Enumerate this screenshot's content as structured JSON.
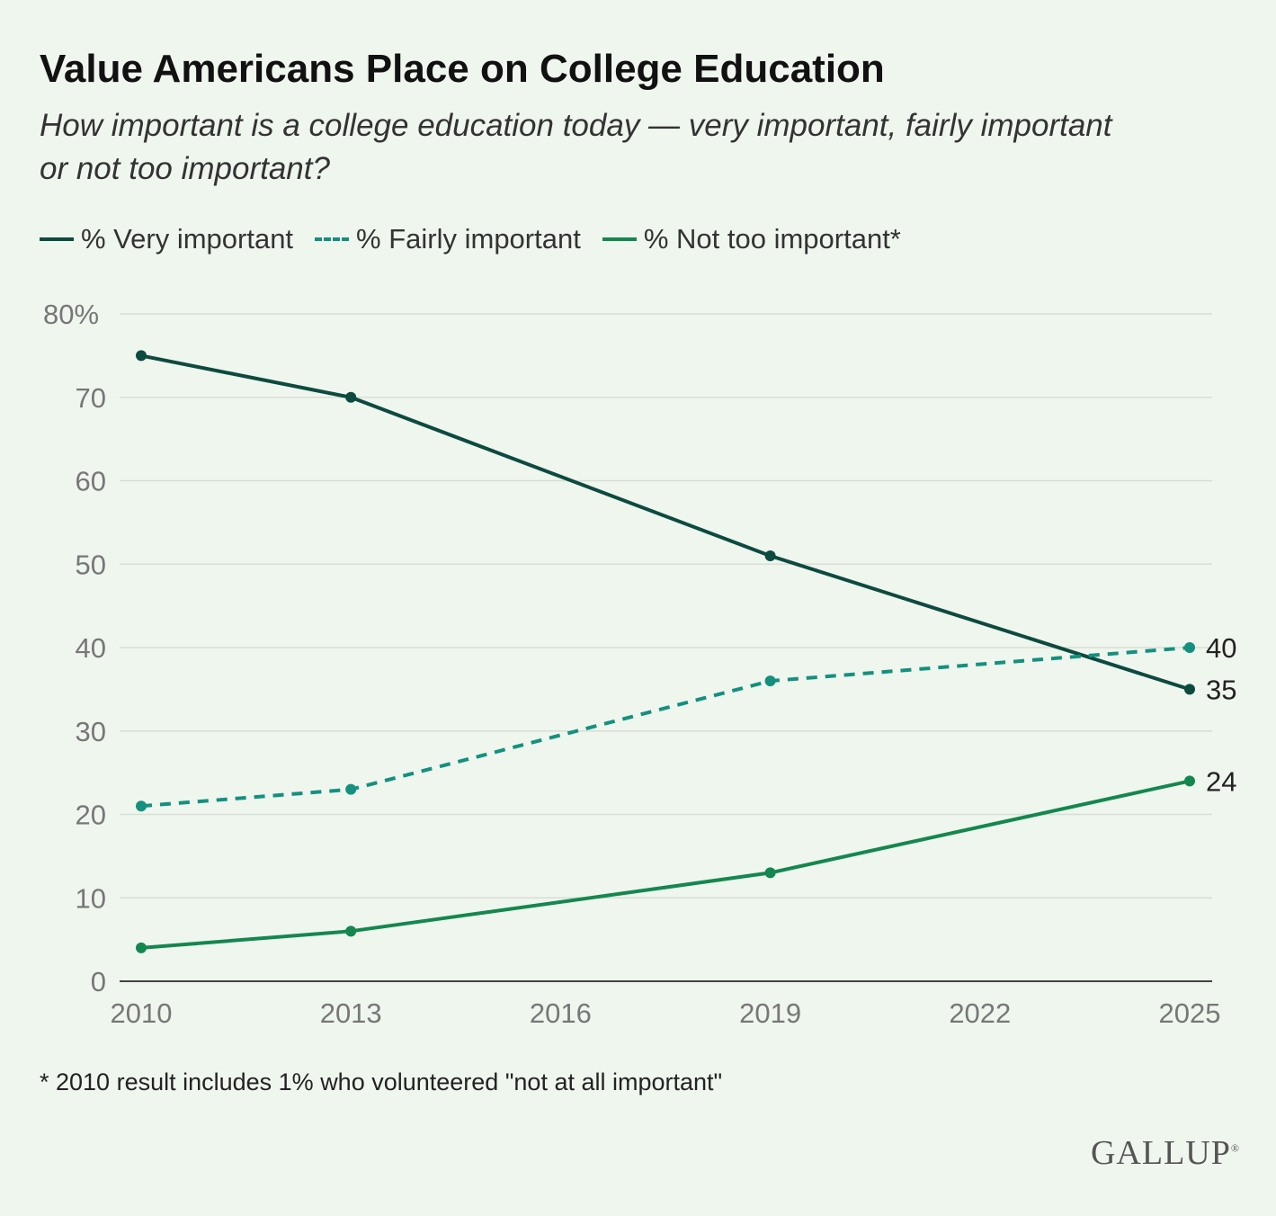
{
  "header": {
    "title": "Value Americans Place on College Education",
    "subtitle": "How important is a college education today — very important, fairly important or not too important?"
  },
  "footnote": "* 2010 result includes 1% who volunteered \"not at all important\"",
  "logo": "GALLUP",
  "colors": {
    "very": "#0d4a3f",
    "fairly": "#14907e",
    "not_too": "#14874f",
    "grid": "#d8ddd6",
    "axis": "#444444",
    "tick": "#777777"
  },
  "chart_data": {
    "type": "line",
    "x": [
      2010,
      2013,
      2019,
      2025
    ],
    "x_ticks": [
      "2010",
      "2013",
      "2016",
      "2019",
      "2022",
      "2025"
    ],
    "y_ticks": [
      "0",
      "10",
      "20",
      "30",
      "40",
      "50",
      "60",
      "70",
      "80%"
    ],
    "ylim": [
      0,
      80
    ],
    "xlim": [
      2010,
      2025
    ],
    "grid": true,
    "legend_position": "top-left",
    "series": [
      {
        "name": "% Very important",
        "key": "very",
        "values": [
          75,
          70,
          51,
          35
        ],
        "style": "solid",
        "end_label": "35"
      },
      {
        "name": "% Fairly important",
        "key": "fairly",
        "values": [
          21,
          23,
          36,
          40
        ],
        "style": "dashed",
        "end_label": "40"
      },
      {
        "name": "% Not too important*",
        "key": "not_too",
        "values": [
          4,
          6,
          13,
          24
        ],
        "style": "solid",
        "end_label": "24"
      }
    ]
  }
}
